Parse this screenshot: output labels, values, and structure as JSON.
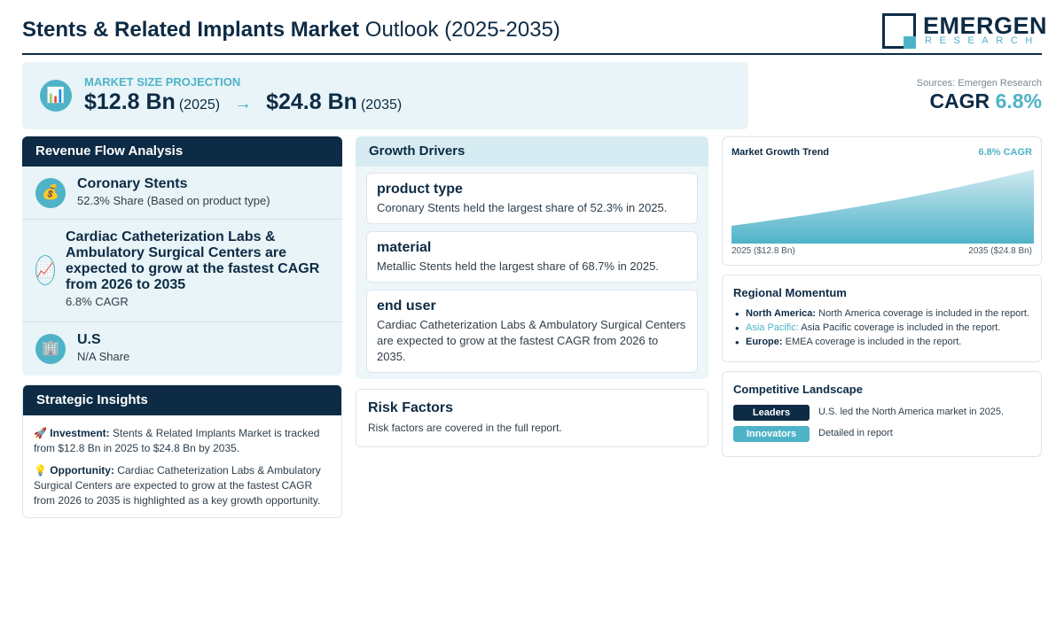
{
  "header": {
    "title_bold": "Stents & Related Implants Market",
    "title_light": "Outlook (2025-2035)",
    "logo_name": "EMERGEN",
    "logo_sub": "RESEARCH"
  },
  "projection": {
    "label": "MARKET SIZE PROJECTION",
    "icon": "chart-icon",
    "start_value": "$12.8 Bn",
    "start_year": "(2025)",
    "arrow": "→",
    "end_value": "$24.8 Bn",
    "end_year": "(2035)"
  },
  "cagr": {
    "sources": "Sources: Emergen Research",
    "label": "CAGR",
    "value": "6.8%"
  },
  "revenue": {
    "title": "Revenue Flow Analysis",
    "items": [
      {
        "icon": "money-bag-icon",
        "title": "Coronary Stents",
        "sub": "52.3% Share (Based on product type)"
      },
      {
        "icon": "trend-up-icon",
        "title": "Cardiac Catheterization Labs & Ambulatory Surgical Centers are expected to grow at the fastest CAGR from 2026 to 2035",
        "sub": "6.8% CAGR"
      },
      {
        "icon": "building-icon",
        "title": "U.S",
        "sub": "N/A Share"
      }
    ]
  },
  "insights": {
    "title": "Strategic Insights",
    "investment_label": "Investment:",
    "investment_text": "Stents & Related Implants Market is tracked from $12.8 Bn in 2025 to $24.8 Bn by 2035.",
    "opportunity_label": "Opportunity:",
    "opportunity_text": "Cardiac Catheterization Labs & Ambulatory Surgical Centers are expected to grow at the fastest CAGR from 2026 to 2035 is highlighted as a key growth opportunity."
  },
  "drivers": {
    "title": "Growth Drivers",
    "items": [
      {
        "title": "product type",
        "text": "Coronary Stents held the largest share of 52.3% in 2025."
      },
      {
        "title": "material",
        "text": "Metallic Stents held the largest share of 68.7% in 2025."
      },
      {
        "title": "end user",
        "text": "Cardiac Catheterization Labs & Ambulatory Surgical Centers are expected to grow at the fastest CAGR from 2026 to 2035."
      }
    ]
  },
  "risk": {
    "title": "Risk Factors",
    "text": "Risk factors are covered in the full report."
  },
  "chart_data": {
    "type": "area",
    "title": "Market Growth Trend",
    "cagr_label": "6.8% CAGR",
    "start_label": "2025 ($12.8 Bn)",
    "end_label": "2035 ($24.8 Bn)",
    "x": [
      2025,
      2035
    ],
    "values": [
      12.8,
      24.8
    ],
    "accent_color": "#4fb3c8"
  },
  "regional": {
    "title": "Regional Momentum",
    "items": [
      {
        "region": "North America:",
        "text": "North America coverage is included in the report."
      },
      {
        "region": "Asia Pacific:",
        "text": "Asia Pacific coverage is included in the report."
      },
      {
        "region": "Europe:",
        "text": "EMEA coverage is included in the report."
      }
    ]
  },
  "competitive": {
    "title": "Competitive Landscape",
    "rows": [
      {
        "badge": "Leaders",
        "text": "U.S. led the North America market in 2025."
      },
      {
        "badge": "Innovators",
        "text": "Detailed in report"
      }
    ]
  }
}
